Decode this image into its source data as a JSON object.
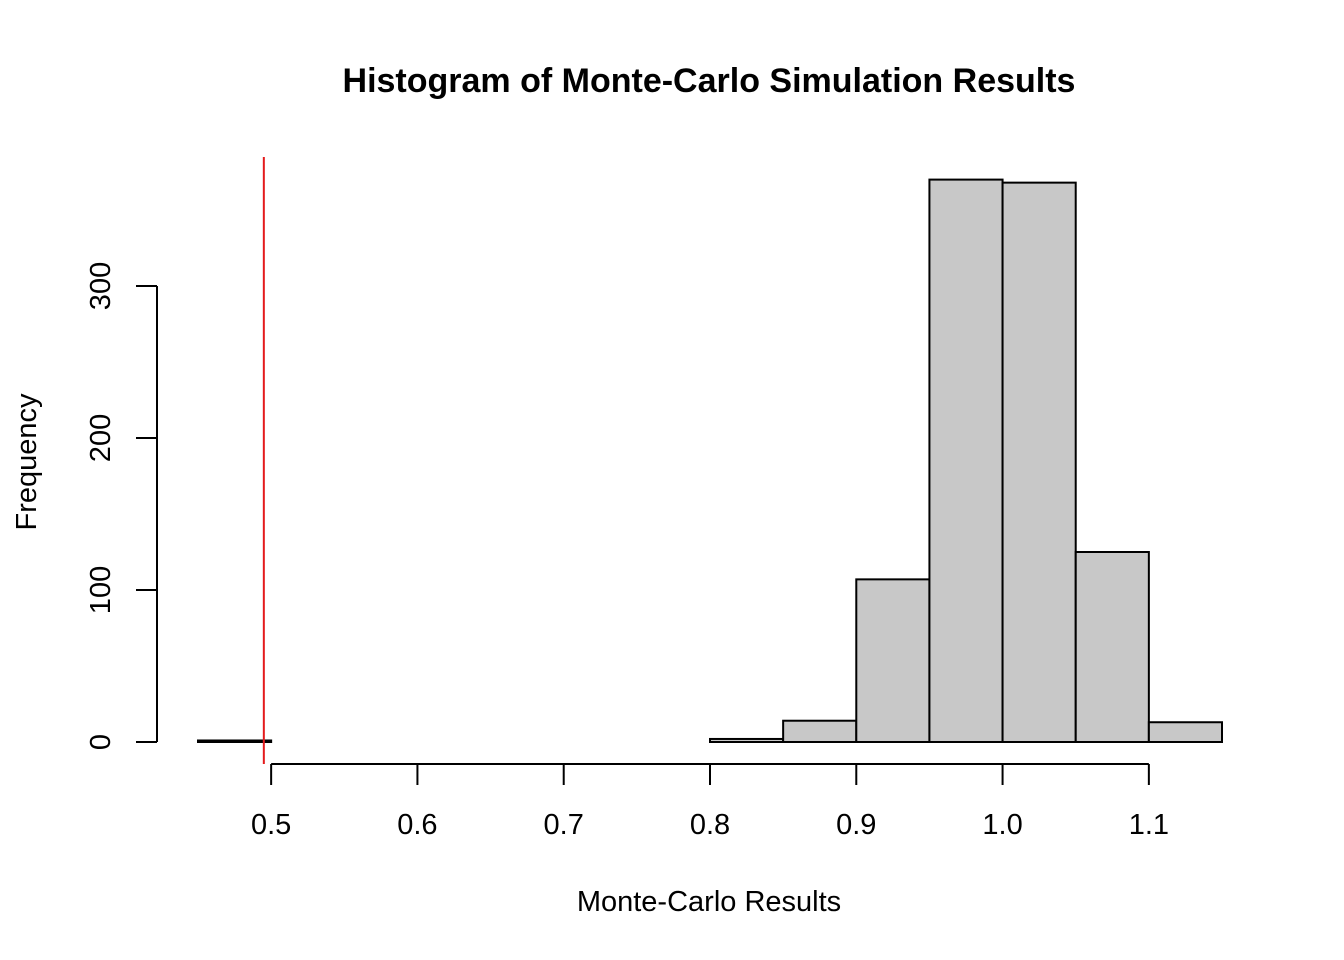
{
  "chart_data": {
    "type": "bar",
    "title": "Histogram of Monte-Carlo Simulation Results",
    "xlabel": "Monte-Carlo Results",
    "ylabel": "Frequency",
    "bin_width": 0.05,
    "bins": [
      {
        "start": 0.45,
        "end": 0.5,
        "count": 1
      },
      {
        "start": 0.5,
        "end": 0.55,
        "count": 0
      },
      {
        "start": 0.55,
        "end": 0.6,
        "count": 0
      },
      {
        "start": 0.6,
        "end": 0.65,
        "count": 0
      },
      {
        "start": 0.65,
        "end": 0.7,
        "count": 0
      },
      {
        "start": 0.7,
        "end": 0.75,
        "count": 0
      },
      {
        "start": 0.75,
        "end": 0.8,
        "count": 0
      },
      {
        "start": 0.8,
        "end": 0.85,
        "count": 2
      },
      {
        "start": 0.85,
        "end": 0.9,
        "count": 14
      },
      {
        "start": 0.9,
        "end": 0.95,
        "count": 107
      },
      {
        "start": 0.95,
        "end": 1.0,
        "count": 370
      },
      {
        "start": 1.0,
        "end": 1.05,
        "count": 368
      },
      {
        "start": 1.05,
        "end": 1.1,
        "count": 125
      },
      {
        "start": 1.1,
        "end": 1.15,
        "count": 13
      }
    ],
    "xlim": [
      0.45,
      1.15
    ],
    "ylim": [
      0,
      385
    ],
    "x_ticks": [
      0.5,
      0.6,
      0.7,
      0.8,
      0.9,
      1.0,
      1.1
    ],
    "x_tick_labels": [
      "0.5",
      "0.6",
      "0.7",
      "0.8",
      "0.9",
      "1.0",
      "1.1"
    ],
    "y_ticks": [
      0,
      100,
      200,
      300
    ],
    "y_tick_labels": [
      "0",
      "100",
      "200",
      "300"
    ],
    "reference_line": {
      "x": 0.495,
      "color": "#e41a1c"
    },
    "bar_fill": "#c8c8c8",
    "bar_stroke": "#000000",
    "grid": false,
    "legend": "none"
  }
}
